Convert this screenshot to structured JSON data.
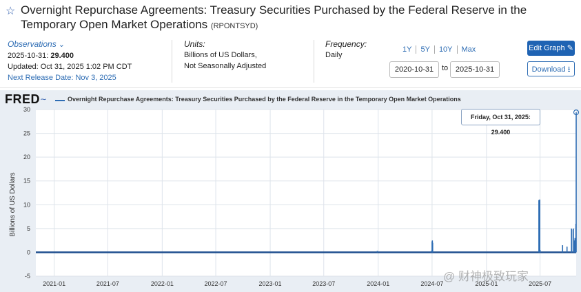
{
  "header": {
    "title": "Overnight Repurchase Agreements: Treasury Securities Purchased by the Federal Reserve in the Temporary Open Market Operations",
    "series_id": "(RPONTSYD)"
  },
  "observations": {
    "label": "Observations",
    "latest_date": "2025-10-31:",
    "latest_value": "29.400",
    "updated": "Updated: Oct 31, 2025 1:02 PM CDT",
    "next_release_label": "Next Release Date:",
    "next_release_value": "Nov 3, 2025"
  },
  "units": {
    "label": "Units:",
    "line1": "Billions of US Dollars,",
    "line2": "Not Seasonally Adjusted"
  },
  "frequency": {
    "label": "Frequency:",
    "value": "Daily"
  },
  "range": {
    "buttons": [
      "1Y",
      "5Y",
      "10Y",
      "Max"
    ],
    "start": "2020-10-31",
    "to": "to",
    "end": "2025-10-31"
  },
  "actions": {
    "edit": "Edit Graph",
    "download": "Download"
  },
  "brand": {
    "logo": "FRED"
  },
  "tooltip": {
    "text": "Friday, Oct 31, 2025:   29.400"
  },
  "watermark": "@ 财神极致玩家",
  "colors": {
    "accent": "#2e6db4",
    "button": "#1f63b3",
    "plot_bg": "#e9eef4"
  },
  "chart_data": {
    "type": "line",
    "title": "Overnight Repurchase Agreements: Treasury Securities Purchased by the Federal Reserve in the Temporary Open Market Operations",
    "legend": "Overnight Repurchase Agreements: Treasury Securities Purchased by the Federal Reserve in the Temporary Open Market Operations",
    "ylabel": "Billions of US Dollars",
    "xlabel": "",
    "ylim": [
      -5,
      30
    ],
    "yticks": [
      30,
      25,
      20,
      15,
      10,
      5,
      0,
      -5
    ],
    "xlim": [
      "2020-10-31",
      "2025-10-31"
    ],
    "xticks": [
      "2021-01",
      "2021-07",
      "2022-01",
      "2022-07",
      "2023-01",
      "2023-07",
      "2024-01",
      "2024-07",
      "2025-01",
      "2025-07"
    ],
    "baseline": 0,
    "spikes": [
      {
        "date": "2023-12-29",
        "value": 0.3
      },
      {
        "date": "2024-06-28",
        "value": 0.3
      },
      {
        "date": "2024-07-01",
        "value": 2.3
      },
      {
        "date": "2024-07-02",
        "value": 2.5
      },
      {
        "date": "2024-07-03",
        "value": 2.0
      },
      {
        "date": "2025-06-27",
        "value": 11.0
      },
      {
        "date": "2025-06-30",
        "value": 11.1
      },
      {
        "date": "2025-07-01",
        "value": 0.5
      },
      {
        "date": "2025-09-15",
        "value": 1.5
      },
      {
        "date": "2025-09-30",
        "value": 1.2
      },
      {
        "date": "2025-10-15",
        "value": 5.0
      },
      {
        "date": "2025-10-16",
        "value": 4.8
      },
      {
        "date": "2025-10-22",
        "value": 5.0
      },
      {
        "date": "2025-10-24",
        "value": 2.5
      },
      {
        "date": "2025-10-27",
        "value": 3.0
      },
      {
        "date": "2025-10-29",
        "value": 2.8
      },
      {
        "date": "2025-10-30",
        "value": 6.0
      },
      {
        "date": "2025-10-31",
        "value": 29.4
      }
    ]
  }
}
